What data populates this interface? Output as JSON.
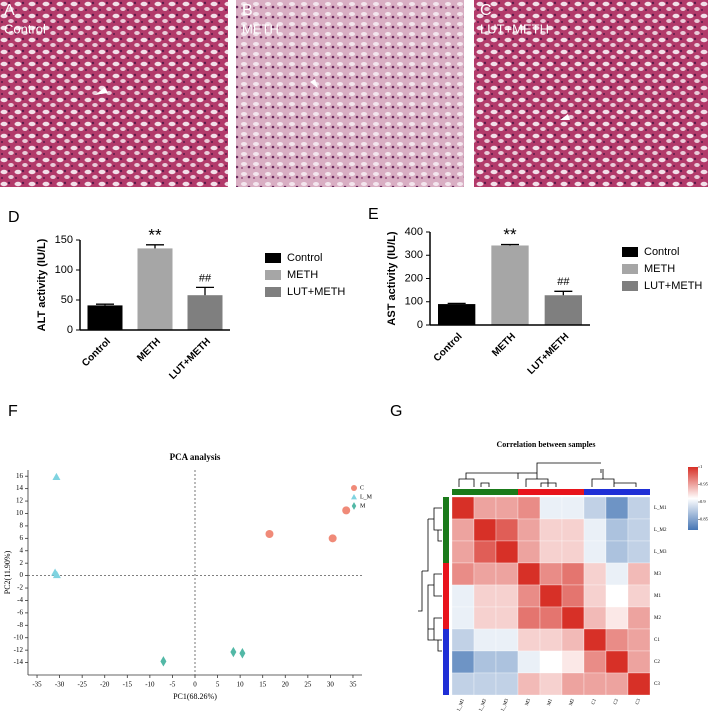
{
  "images": [
    {
      "letter": "A",
      "label": "Control"
    },
    {
      "letter": "B",
      "label": "METH"
    },
    {
      "letter": "C",
      "label": "LUT+METH"
    }
  ],
  "chart_data": [
    {
      "type": "bar",
      "letter": "D",
      "ylabel": "ALT activity (IU/L)",
      "categories": [
        "Control",
        "METH",
        "LUT+METH"
      ],
      "values": [
        41,
        136,
        58
      ],
      "errors": [
        2,
        6,
        13
      ],
      "colors": [
        "#000000",
        "#a6a6a6",
        "#7f7f7f"
      ],
      "annotations": [
        {
          "index": 1,
          "text": "**"
        },
        {
          "index": 2,
          "text": "##"
        }
      ],
      "ylim": [
        0,
        150
      ],
      "yticks": [
        0,
        50,
        100,
        150
      ],
      "legend": "right"
    },
    {
      "type": "bar",
      "letter": "E",
      "ylabel": "AST activity (IU/L)",
      "categories": [
        "Control",
        "METH",
        "LUT+METH"
      ],
      "values": [
        90,
        342,
        128
      ],
      "errors": [
        3,
        4,
        17
      ],
      "colors": [
        "#000000",
        "#a6a6a6",
        "#7f7f7f"
      ],
      "annotations": [
        {
          "index": 1,
          "text": "**"
        },
        {
          "index": 2,
          "text": "##"
        }
      ],
      "ylim": [
        0,
        400
      ],
      "yticks": [
        0,
        100,
        200,
        300,
        400
      ],
      "legend": "right"
    },
    {
      "type": "scatter",
      "letter": "F",
      "title": "PCA analysis",
      "xlabel": "PC1(68.26%)",
      "ylabel": "PC2(11.90%)",
      "series": [
        {
          "name": "C",
          "color": "#f08a78",
          "marker": "circle",
          "x": [
            16.5,
            30.5,
            33.5
          ],
          "values": [
            6.7,
            6,
            10.5
          ]
        },
        {
          "name": "L_M",
          "color": "#7fd3e0",
          "marker": "triangle",
          "x": [
            -30.7,
            -31,
            -30.6
          ],
          "values": [
            15.9,
            0.5,
            0.1
          ]
        },
        {
          "name": "M",
          "color": "#52b8a6",
          "marker": "diamond",
          "x": [
            -7,
            8.5,
            10.5
          ],
          "values": [
            -13.8,
            -12.3,
            -12.5
          ]
        }
      ],
      "xlim": [
        -37,
        37
      ],
      "xticks": [
        -35,
        -30,
        -25,
        -20,
        -15,
        -10,
        -5,
        0,
        5,
        10,
        15,
        20,
        25,
        30,
        35
      ],
      "ylim": [
        -16,
        17
      ],
      "yticks": [
        -14,
        -12,
        -10,
        -8,
        -6,
        -4,
        -2,
        0,
        2,
        4,
        6,
        8,
        10,
        12,
        14,
        16
      ],
      "zero_lines": true,
      "legend": "upper right"
    },
    {
      "type": "heatmap",
      "letter": "G",
      "title": "Correlation between samples",
      "labels": [
        "L_M1",
        "L_M2",
        "L_M3",
        "M3",
        "M1",
        "M2",
        "C1",
        "C2",
        "C3"
      ],
      "groups": [
        {
          "color": "#1a7a1a",
          "count": 3
        },
        {
          "color": "#e8141c",
          "count": 3
        },
        {
          "color": "#1f2fd6",
          "count": 3
        }
      ],
      "matrix": [
        [
          1,
          0.95,
          0.95,
          0.96,
          0.9,
          0.9,
          0.88,
          0.84,
          0.88
        ],
        [
          0.95,
          1,
          0.98,
          0.95,
          0.93,
          0.93,
          0.9,
          0.87,
          0.88
        ],
        [
          0.95,
          0.98,
          1,
          0.95,
          0.93,
          0.93,
          0.9,
          0.87,
          0.88
        ],
        [
          0.96,
          0.95,
          0.95,
          1,
          0.96,
          0.97,
          0.93,
          0.9,
          0.94
        ],
        [
          0.9,
          0.93,
          0.93,
          0.96,
          1,
          0.97,
          0.93,
          0.91,
          0.93
        ],
        [
          0.9,
          0.93,
          0.93,
          0.97,
          0.97,
          1,
          0.94,
          0.92,
          0.95
        ],
        [
          0.88,
          0.9,
          0.9,
          0.93,
          0.93,
          0.94,
          1,
          0.96,
          0.95
        ],
        [
          0.84,
          0.87,
          0.87,
          0.9,
          0.91,
          0.92,
          0.96,
          1,
          0.95
        ],
        [
          0.88,
          0.88,
          0.88,
          0.94,
          0.93,
          0.95,
          0.95,
          0.95,
          1
        ]
      ],
      "zlim": [
        0.82,
        1
      ],
      "zticks": [
        1,
        0.95,
        0.9,
        0.85
      ],
      "colors": [
        "#4575b4",
        "#ffffff",
        "#d73027"
      ]
    }
  ]
}
